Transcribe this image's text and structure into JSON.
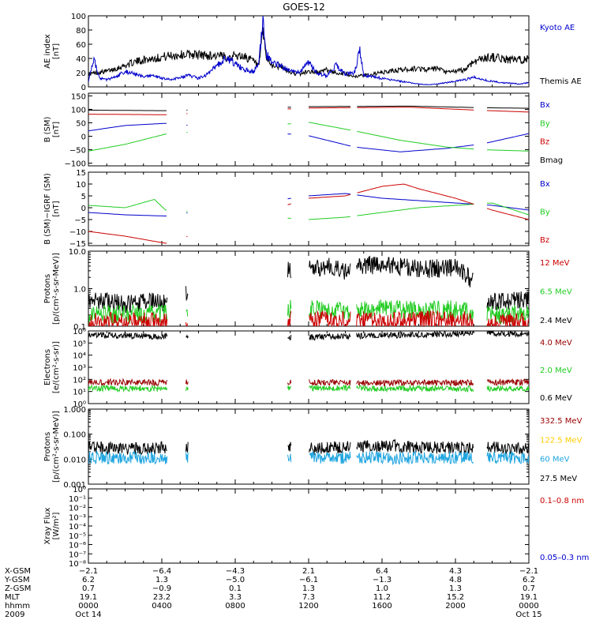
{
  "chart_data": {
    "type": "line",
    "title": "GOES-12",
    "x_range_hours": [
      0,
      24
    ],
    "panels": [
      {
        "id": "ae",
        "ylabel_lines": [
          "AE index",
          "[nT]"
        ],
        "scale": "linear",
        "ylim": [
          0,
          100
        ],
        "ticks": [
          0,
          20,
          40,
          60,
          80,
          100
        ],
        "tick_labels": [
          "0",
          "20",
          "40",
          "60",
          "80",
          "100"
        ],
        "legend": [
          {
            "label": "Kyoto AE",
            "color": "#0000cc"
          },
          {
            "label": "Themis AE",
            "color": "#000000"
          }
        ],
        "series": [
          {
            "name": "Themis AE",
            "color": "#000000",
            "x": [
              0,
              0.5,
              1,
              1.5,
              2,
              2.5,
              3,
              3.5,
              4,
              4.5,
              5,
              5.5,
              6,
              6.5,
              7,
              7.5,
              8,
              8.5,
              9,
              9.3,
              9.5,
              9.7,
              10,
              10.5,
              11,
              11.5,
              12,
              12.5,
              13,
              13.5,
              14,
              14.5,
              15,
              15.5,
              16,
              16.5,
              17,
              17.5,
              18,
              18.5,
              19,
              19.5,
              20,
              20.5,
              21,
              21.5,
              22,
              22.5,
              23,
              23.5,
              24
            ],
            "y": [
              18,
              20,
              22,
              26,
              30,
              35,
              38,
              40,
              42,
              44,
              45,
              46,
              45,
              44,
              44,
              42,
              44,
              43,
              36,
              28,
              80,
              40,
              30,
              28,
              20,
              18,
              22,
              20,
              24,
              20,
              18,
              15,
              16,
              18,
              20,
              22,
              24,
              25,
              26,
              24,
              26,
              20,
              22,
              24,
              36,
              40,
              42,
              40,
              38,
              38,
              40
            ]
          },
          {
            "name": "Kyoto AE",
            "color": "#0000cc",
            "x": [
              0,
              0.3,
              0.6,
              1,
              1.5,
              2,
              2.5,
              3,
              3.5,
              4,
              4.5,
              5,
              5.5,
              6,
              6.5,
              7,
              7.5,
              8,
              8.5,
              9,
              9.3,
              9.5,
              9.7,
              10,
              10.5,
              11,
              11.5,
              12,
              12.5,
              13,
              13.5,
              14,
              14.5,
              14.8,
              15,
              15.5,
              16,
              16.5,
              17,
              17.5,
              18,
              18.5,
              19,
              19.5,
              20,
              20.5,
              21,
              21.5,
              22,
              22.5,
              23,
              23.5,
              24
            ],
            "y": [
              8,
              38,
              12,
              10,
              14,
              22,
              18,
              14,
              16,
              12,
              10,
              14,
              16,
              12,
              18,
              30,
              42,
              32,
              24,
              22,
              34,
              96,
              45,
              36,
              30,
              22,
              20,
              34,
              18,
              16,
              30,
              18,
              20,
              52,
              16,
              14,
              12,
              10,
              8,
              6,
              4,
              3,
              4,
              6,
              8,
              10,
              14,
              10,
              8,
              6,
              5,
              4,
              6
            ]
          }
        ]
      },
      {
        "id": "bsm",
        "ylabel_lines": [
          "B (SM)",
          "[nT]"
        ],
        "scale": "linear",
        "ylim": [
          -110,
          160
        ],
        "ticks": [
          -100,
          -50,
          0,
          50,
          100,
          150
        ],
        "tick_labels": [
          "−100",
          "−50",
          "0",
          "50",
          "100",
          "150"
        ],
        "legend": [
          {
            "label": "Bx",
            "color": "#0000cc"
          },
          {
            "label": "By",
            "color": "#22cc22"
          },
          {
            "label": "Bz",
            "color": "#cc0000"
          },
          {
            "label": "Bmag",
            "color": "#000000"
          }
        ],
        "series": [
          {
            "name": "Bmag",
            "color": "#000000",
            "x": [
              0,
              4.2,
              12,
              17.5,
              21.5,
              24
            ],
            "y": [
              97,
              95,
              110,
              112,
              106,
              104
            ]
          },
          {
            "name": "Bz",
            "color": "#cc0000",
            "x": [
              0,
              4.2,
              12,
              17.5,
              21.5,
              24
            ],
            "y": [
              82,
              80,
              105,
              108,
              96,
              90
            ]
          },
          {
            "name": "Bx",
            "color": "#0000cc",
            "x": [
              0,
              2,
              4.2,
              12,
              14.5,
              17,
              19.5,
              21.5,
              24
            ],
            "y": [
              20,
              40,
              48,
              2,
              -40,
              -58,
              -45,
              -28,
              10
            ]
          },
          {
            "name": "By",
            "color": "#22cc22",
            "x": [
              0,
              2,
              4.2,
              12,
              14.5,
              17,
              19.5,
              21.5,
              24
            ],
            "y": [
              -55,
              -30,
              8,
              52,
              20,
              -15,
              -40,
              -50,
              -55
            ]
          }
        ]
      },
      {
        "id": "bdiff",
        "ylabel_lines": [
          "B (SM)−IGRF (SM)",
          "[nT]"
        ],
        "scale": "linear",
        "ylim": [
          -16,
          15
        ],
        "ticks": [
          -15,
          -10,
          -5,
          0,
          5,
          10,
          15
        ],
        "tick_labels": [
          "−15",
          "−10",
          "−5",
          "0",
          "5",
          "10",
          "15"
        ],
        "legend": [
          {
            "label": "Bx",
            "color": "#0000cc"
          },
          {
            "label": "By",
            "color": "#22cc22"
          },
          {
            "label": "Bz",
            "color": "#cc0000"
          }
        ],
        "series": [
          {
            "name": "Bx",
            "color": "#0000cc",
            "x": [
              0,
              2,
              4.2,
              12,
              14,
              16,
              18,
              20,
              22,
              24
            ],
            "y": [
              -2,
              -3,
              -3.5,
              5,
              6,
              4,
              3,
              2,
              1,
              -1
            ]
          },
          {
            "name": "By",
            "color": "#22cc22",
            "x": [
              0,
              2,
              3.6,
              4.2,
              12,
              14,
              16,
              18,
              20,
              22,
              24
            ],
            "y": [
              1,
              0,
              3.5,
              -1,
              -5,
              -4,
              -2,
              0,
              1,
              2,
              -3
            ]
          },
          {
            "name": "Bz",
            "color": "#cc0000",
            "x": [
              0,
              2,
              4.2,
              12,
              14,
              15,
              16,
              17.2,
              18,
              20,
              22,
              24
            ],
            "y": [
              -10,
              -12,
              -15,
              4,
              5,
              7,
              9,
              10,
              8,
              4,
              -1,
              -5
            ]
          }
        ]
      },
      {
        "id": "protons-low",
        "ylabel_lines": [
          "Protons",
          "[p/(cm²-s-sr-MeV)]"
        ],
        "scale": "log",
        "ylim": [
          0.1,
          10
        ],
        "ticks": [
          0.1,
          1,
          10
        ],
        "tick_labels": [
          "0.1",
          "1.0",
          "10.0"
        ],
        "legend": [
          {
            "label": "12 MeV",
            "color": "#cc0000"
          },
          {
            "label": "6.5 MeV",
            "color": "#22cc22"
          },
          {
            "label": "2.4 MeV",
            "color": "#000000"
          }
        ],
        "series": [
          {
            "name": "2.4 MeV",
            "color": "#000000",
            "x": [
              0,
              2,
              4,
              4.2,
              12,
              13,
              14,
              15,
              16,
              17,
              18,
              19,
              20,
              21.5,
              24
            ],
            "y": [
              0.5,
              0.4,
              0.45,
              0.4,
              3.5,
              4,
              3,
              4.5,
              3.8,
              4,
              3.2,
              3.5,
              3.5,
              0.45,
              0.5
            ]
          },
          {
            "name": "6.5 MeV",
            "color": "#22cc22",
            "x": [
              0,
              4.2,
              12,
              14,
              16,
              18,
              20,
              21.5,
              24
            ],
            "y": [
              0.2,
              0.22,
              0.3,
              0.25,
              0.3,
              0.25,
              0.28,
              0.2,
              0.2
            ]
          },
          {
            "name": "12 MeV",
            "color": "#cc0000",
            "x": [
              0,
              4.2,
              12,
              16,
              20,
              21.5,
              24
            ],
            "y": [
              0.13,
              0.14,
              0.15,
              0.14,
              0.15,
              0.12,
              0.13
            ]
          }
        ]
      },
      {
        "id": "electrons",
        "ylabel_lines": [
          "Electrons",
          "[e/(cm²-s-sr)]"
        ],
        "scale": "log",
        "ylim": [
          1,
          1000000
        ],
        "ticks": [
          1,
          10,
          100,
          1000,
          10000,
          100000,
          1000000
        ],
        "tick_labels": [
          "10⁰",
          "10¹",
          "10²",
          "10³",
          "10⁴",
          "10⁵",
          "10⁶"
        ],
        "legend": [
          {
            "label": "4.0 MeV",
            "color": "#990000"
          },
          {
            "label": "2.0 MeV",
            "color": "#22cc22"
          },
          {
            "label": "0.6 MeV",
            "color": "#000000"
          }
        ],
        "series": [
          {
            "name": "0.6 MeV",
            "color": "#000000",
            "x": [
              0,
              2,
              4.2,
              12,
              15,
              18,
              21.5,
              24
            ],
            "y": [
              500000,
              400000,
              350000,
              300000,
              400000,
              500000,
              600000,
              600000
            ]
          },
          {
            "name": "4.0 MeV",
            "color": "#990000",
            "x": [
              0,
              4.2,
              12,
              16,
              21.5,
              24
            ],
            "y": [
              60,
              55,
              60,
              50,
              55,
              60
            ]
          },
          {
            "name": "2.0 MeV",
            "color": "#22cc22",
            "x": [
              0,
              4.2,
              12,
              16,
              21.5,
              24
            ],
            "y": [
              18,
              17,
              20,
              18,
              17,
              18
            ]
          }
        ]
      },
      {
        "id": "protons-high",
        "ylabel_lines": [
          "Protons",
          "[p/(cm²-s-sr-MeV)]"
        ],
        "scale": "log",
        "ylim": [
          0.001,
          1
        ],
        "ticks": [
          0.001,
          0.01,
          0.1,
          1
        ],
        "tick_labels": [
          "0.001",
          "0.010",
          "0.100",
          "1.000"
        ],
        "legend": [
          {
            "label": "332.5 MeV",
            "color": "#990000"
          },
          {
            "label": "122.5 MeV",
            "color": "#ffcc00"
          },
          {
            "label": "60 MeV",
            "color": "#1fa5e0"
          },
          {
            "label": "27.5 MeV",
            "color": "#000000"
          }
        ],
        "series": [
          {
            "name": "27.5 MeV",
            "color": "#000000",
            "x": [
              0,
              2,
              4.2,
              12,
              14,
              16,
              18,
              20,
              21.5,
              24
            ],
            "y": [
              0.03,
              0.025,
              0.03,
              0.028,
              0.03,
              0.035,
              0.03,
              0.028,
              0.03,
              0.025
            ]
          },
          {
            "name": "60 MeV",
            "color": "#1fa5e0",
            "x": [
              0,
              4.2,
              12,
              16,
              21.5,
              24
            ],
            "y": [
              0.012,
              0.011,
              0.012,
              0.011,
              0.012,
              0.011
            ]
          }
        ]
      },
      {
        "id": "xray",
        "ylabel_lines": [
          "Xray Flux",
          "[W/m²]"
        ],
        "scale": "log",
        "ylim": [
          1e-08,
          1
        ],
        "ticks": [
          1e-08,
          1e-07,
          1e-06,
          1e-05,
          0.0001,
          0.001,
          0.01,
          0.1,
          1
        ],
        "tick_labels": [
          "10⁻⁸",
          "10⁻⁷",
          "10⁻⁶",
          "10⁻⁵",
          "10⁻⁴",
          "10⁻³",
          "10⁻²",
          "10⁻¹",
          "10⁰"
        ],
        "legend": [
          {
            "label": "0.1–0.8 nm",
            "color": "#cc0000"
          },
          {
            "label": "0.05–0.3 nm",
            "color": "#0000cc"
          }
        ],
        "series": []
      }
    ],
    "x_axis_rows": [
      {
        "label": "X-GSM",
        "values": [
          "−2.1",
          "−6.4",
          "−4.3",
          "2.1",
          "6.4",
          "4.3",
          "−2.1"
        ]
      },
      {
        "label": "Y-GSM",
        "values": [
          "6.2",
          "1.3",
          "−5.0",
          "−6.1",
          "−1.3",
          "4.8",
          "6.2"
        ]
      },
      {
        "label": "Z-GSM",
        "values": [
          "0.7",
          "−0.9",
          "0.1",
          "1.3",
          "1.0",
          "1.3",
          "0.7"
        ]
      },
      {
        "label": "MLT",
        "values": [
          "19.1",
          "23.2",
          "3.3",
          "7.3",
          "11.2",
          "15.2",
          "19.1"
        ]
      },
      {
        "label": "hhmm",
        "values": [
          "0000",
          "0400",
          "0800",
          "1200",
          "1600",
          "2000",
          "0000"
        ]
      },
      {
        "label": "2009",
        "values": [
          "Oct 14",
          "",
          "",
          "",
          "",
          "",
          "Oct 15"
        ]
      }
    ]
  }
}
